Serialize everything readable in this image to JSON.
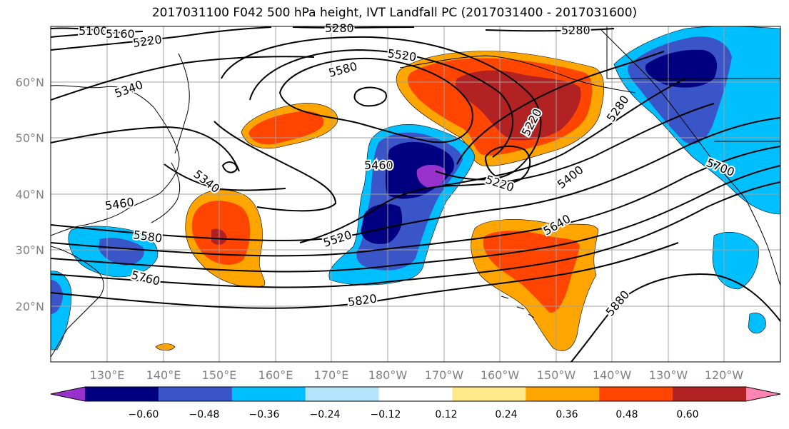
{
  "title": "2017031100 F042 500 hPa height, IVT Landfall PC (2017031400 - 2017031600)",
  "map": {
    "lat_ticks": [
      "20°N",
      "30°N",
      "40°N",
      "50°N",
      "60°N"
    ],
    "lon_ticks": [
      "130°E",
      "140°E",
      "150°E",
      "160°E",
      "170°E",
      "180°W",
      "170°W",
      "160°W",
      "150°W",
      "140°W",
      "130°W",
      "120°W"
    ],
    "contour_labels": [
      {
        "text": "5100",
        "name": "contour-label-5100"
      },
      {
        "text": "5160",
        "name": "contour-label-5160"
      },
      {
        "text": "5220",
        "name": "contour-label-5220-west"
      },
      {
        "text": "5280",
        "name": "contour-label-5280-top"
      },
      {
        "text": "5280",
        "name": "contour-label-5280-north"
      },
      {
        "text": "5520",
        "name": "contour-label-5520-north"
      },
      {
        "text": "5580",
        "name": "contour-label-5580-north"
      },
      {
        "text": "5340",
        "name": "contour-label-5340-west"
      },
      {
        "text": "5460",
        "name": "contour-label-5460-center"
      },
      {
        "text": "5220",
        "name": "contour-label-5220-gulf"
      },
      {
        "text": "5220",
        "name": "contour-label-5220-low"
      },
      {
        "text": "5280",
        "name": "contour-label-5280-east"
      },
      {
        "text": "5400",
        "name": "contour-label-5400"
      },
      {
        "text": "5700",
        "name": "contour-label-5700"
      },
      {
        "text": "5340",
        "name": "contour-label-5340-japan"
      },
      {
        "text": "5460",
        "name": "contour-label-5460-west"
      },
      {
        "text": "5580",
        "name": "contour-label-5580-west"
      },
      {
        "text": "5520",
        "name": "contour-label-5520-center"
      },
      {
        "text": "5640",
        "name": "contour-label-5640"
      },
      {
        "text": "5760",
        "name": "contour-label-5760"
      },
      {
        "text": "5820",
        "name": "contour-label-5820"
      },
      {
        "text": "5880",
        "name": "contour-label-5880"
      }
    ]
  },
  "colorbar": {
    "colors": [
      "#9932cc",
      "#000080",
      "#3a55c8",
      "#00bfff",
      "#b3e5fc",
      "#ffffff",
      "#ffe989",
      "#ffa500",
      "#ff4500",
      "#b22222",
      "#ff85b3"
    ],
    "tick_labels": [
      "−0.60",
      "−0.48",
      "−0.36",
      "−0.24",
      "−0.12",
      "0.12",
      "0.24",
      "0.36",
      "0.48",
      "0.60"
    ]
  }
}
